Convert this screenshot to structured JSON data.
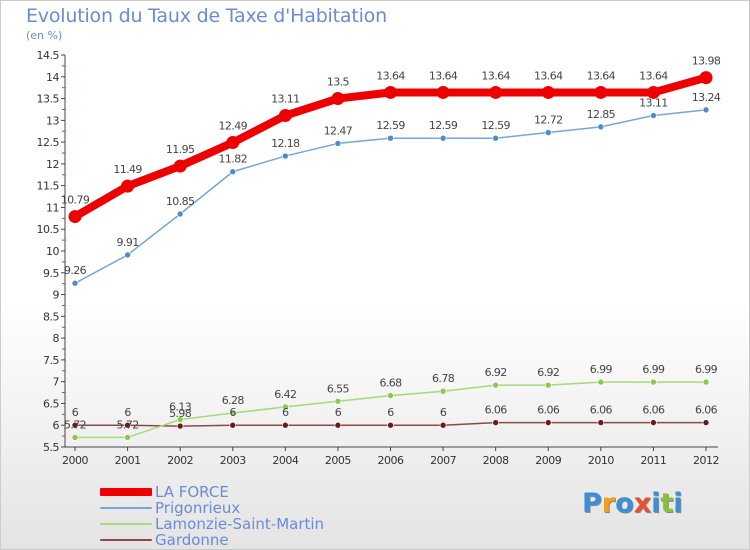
{
  "title": "Evolution du Taux de Taxe d'Habitation",
  "subtitle": "(en %)",
  "logo": {
    "text": "Proxiti",
    "colors": [
      "#3a8fd8",
      "#f0a020",
      "#3a8fd8",
      "#e8502a",
      "#3a8fd8",
      "#8ac03a",
      "#3a8fd8"
    ]
  },
  "chart_data": {
    "type": "line",
    "x": [
      "2000",
      "2001",
      "2002",
      "2003",
      "2004",
      "2005",
      "2006",
      "2007",
      "2008",
      "2009",
      "2010",
      "2011",
      "2012"
    ],
    "ylim": [
      5.5,
      14.5
    ],
    "yticks": [
      "5.5",
      "6",
      "6.5",
      "7",
      "7.5",
      "8",
      "8.5",
      "9",
      "9.5",
      "10",
      "10.5",
      "11",
      "11.5",
      "12",
      "12.5",
      "13",
      "13.5",
      "14",
      "14.5"
    ],
    "grid": false,
    "legend_position": "bottom-left",
    "series": [
      {
        "name": "LA FORCE",
        "color": "#ee0000",
        "width": 8,
        "marker": 6.5,
        "values": [
          10.79,
          11.49,
          11.95,
          12.49,
          13.11,
          13.5,
          13.64,
          13.64,
          13.64,
          13.64,
          13.64,
          13.64,
          13.98
        ],
        "labels": [
          "10.79",
          "11.49",
          "11.95",
          "12.49",
          "13.11",
          "13.5",
          "13.64",
          "13.64",
          "13.64",
          "13.64",
          "13.64",
          "13.64",
          "13.98"
        ]
      },
      {
        "name": "Prigonrieux",
        "color": "#74a6d6",
        "width": 1.5,
        "marker": 3,
        "marker_fill": "#4e8ccc",
        "values": [
          9.26,
          9.91,
          10.85,
          11.82,
          12.18,
          12.47,
          12.59,
          12.59,
          12.59,
          12.72,
          12.85,
          13.11,
          13.24
        ],
        "labels": [
          "9.26",
          "9.91",
          "10.85",
          "11.82",
          "12.18",
          "12.47",
          "12.59",
          "12.59",
          "12.59",
          "12.72",
          "12.85",
          "13.11",
          "13.24"
        ]
      },
      {
        "name": "Lamonzie-Saint-Martin",
        "color": "#a8d878",
        "width": 1.5,
        "marker": 3,
        "marker_fill": "#86cc4a",
        "values": [
          5.72,
          5.72,
          6.13,
          6.28,
          6.42,
          6.55,
          6.68,
          6.78,
          6.92,
          6.92,
          6.99,
          6.99,
          6.99
        ],
        "labels": [
          "5.72",
          "5.72",
          "6.13",
          "6.28",
          "6.42",
          "6.55",
          "6.68",
          "6.78",
          "6.92",
          "6.92",
          "6.99",
          "6.99",
          "6.99"
        ]
      },
      {
        "name": "Gardonne",
        "color": "#8a4a4a",
        "width": 1.5,
        "marker": 3,
        "marker_fill": "#6a1a1a",
        "values": [
          6,
          6,
          5.98,
          6,
          6,
          6,
          6,
          6,
          6.06,
          6.06,
          6.06,
          6.06,
          6.06
        ],
        "labels": [
          "6",
          "6",
          "5.98",
          "6",
          "6",
          "6",
          "6",
          "6",
          "6.06",
          "6.06",
          "6.06",
          "6.06",
          "6.06"
        ]
      }
    ]
  }
}
